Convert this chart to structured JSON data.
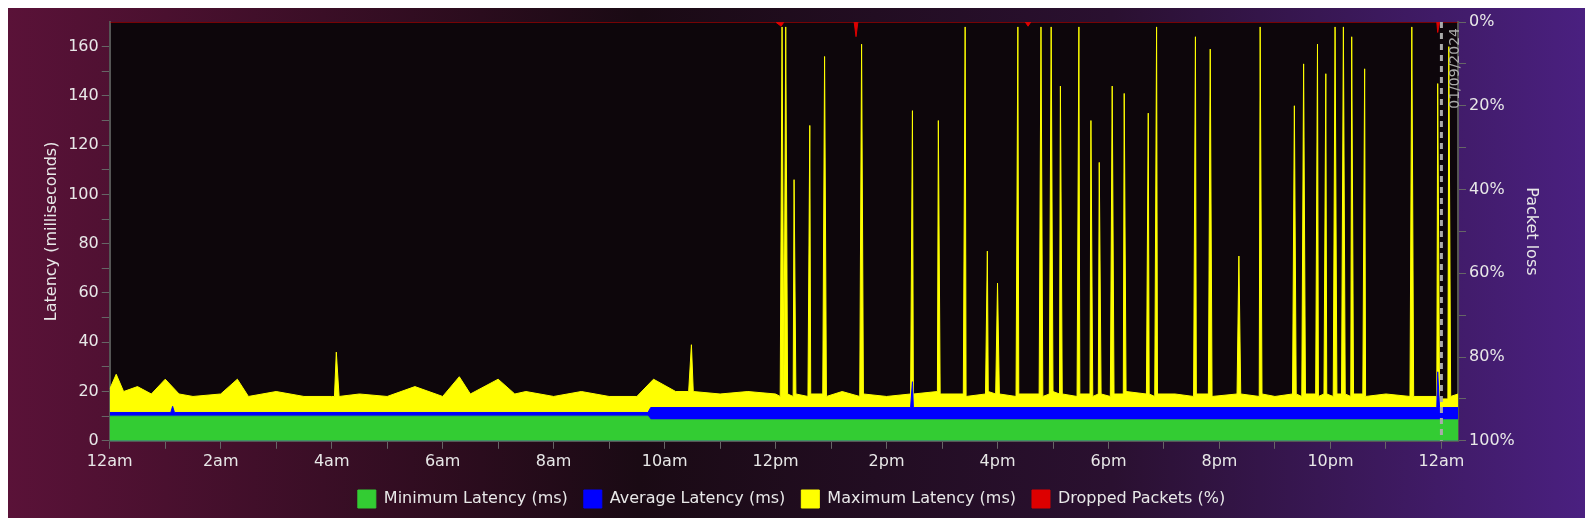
{
  "chart_data": {
    "type": "area",
    "ylabel": "Latency (milliseconds)",
    "y2label": "Packet loss",
    "xlim": [
      "2024-08-31T00:00",
      "2024-09-01T00:18"
    ],
    "ylim": [
      0,
      170
    ],
    "y2lim": [
      100,
      0
    ],
    "xticks": [
      {
        "value": "2024-08-31T00:00",
        "label": "12am"
      },
      {
        "value": "2024-08-31T01:00",
        "label": null
      },
      {
        "value": "2024-08-31T02:00",
        "label": "2am"
      },
      {
        "value": "2024-08-31T03:00",
        "label": null
      },
      {
        "value": "2024-08-31T04:00",
        "label": "4am"
      },
      {
        "value": "2024-08-31T05:00",
        "label": null
      },
      {
        "value": "2024-08-31T06:00",
        "label": "6am"
      },
      {
        "value": "2024-08-31T07:00",
        "label": null
      },
      {
        "value": "2024-08-31T08:00",
        "label": "8am"
      },
      {
        "value": "2024-08-31T09:00",
        "label": null
      },
      {
        "value": "2024-08-31T10:00",
        "label": "10am"
      },
      {
        "value": "2024-08-31T11:00",
        "label": null
      },
      {
        "value": "2024-08-31T12:00",
        "label": "12pm"
      },
      {
        "value": "2024-08-31T13:00",
        "label": null
      },
      {
        "value": "2024-08-31T14:00",
        "label": "2pm"
      },
      {
        "value": "2024-08-31T15:00",
        "label": null
      },
      {
        "value": "2024-08-31T16:00",
        "label": "4pm"
      },
      {
        "value": "2024-08-31T17:00",
        "label": null
      },
      {
        "value": "2024-08-31T18:00",
        "label": "6pm"
      },
      {
        "value": "2024-08-31T19:00",
        "label": null
      },
      {
        "value": "2024-08-31T20:00",
        "label": "8pm"
      },
      {
        "value": "2024-08-31T21:00",
        "label": null
      },
      {
        "value": "2024-08-31T22:00",
        "label": "10pm"
      },
      {
        "value": "2024-08-31T23:00",
        "label": null
      },
      {
        "value": "2024-09-01T00:00",
        "label": "12am"
      }
    ],
    "yticks": [
      0,
      {
        "value": 10,
        "label": null
      },
      20,
      {
        "value": 30,
        "label": null
      },
      40,
      {
        "value": 50,
        "label": null
      },
      60,
      {
        "value": 70,
        "label": null
      },
      80,
      {
        "value": 90,
        "label": null
      },
      100,
      {
        "value": 110,
        "label": null
      },
      120,
      {
        "value": 130,
        "label": null
      },
      140,
      {
        "value": 150,
        "label": null
      },
      160
    ],
    "y2ticks": [
      {
        "value": 0,
        "label": "0%"
      },
      {
        "value": 10,
        "label": null
      },
      {
        "value": 20,
        "label": "20%"
      },
      {
        "value": 30,
        "label": null
      },
      {
        "value": 40,
        "label": "40%"
      },
      {
        "value": 50,
        "label": null
      },
      {
        "value": 60,
        "label": "60%"
      },
      {
        "value": 70,
        "label": null
      },
      {
        "value": 80,
        "label": "80%"
      },
      {
        "value": 90,
        "label": null
      },
      {
        "value": 100,
        "label": "100%"
      }
    ],
    "grid": false,
    "legend": "bottom",
    "marker": "none",
    "ref_lines": [
      {
        "axis": "x",
        "value": "2024-09-01T00:00",
        "label": "01/09/2024",
        "color": "#aaaaaa",
        "line_style": "dashed"
      }
    ],
    "series": [
      {
        "name": "Minimum Latency (ms)",
        "color": "#33cc33",
        "x": [
          "2024-08-31T00:00",
          "2024-08-31T09:42",
          "2024-08-31T09:45",
          "2024-09-01T00:18"
        ],
        "values": [
          10,
          10,
          8.5,
          8.5
        ]
      },
      {
        "name": "Average Latency (ms)",
        "color": "#0000ff",
        "x": [
          "2024-08-31T00:00",
          "2024-08-31T01:06",
          "2024-08-31T01:08",
          "2024-08-31T01:10",
          "2024-08-31T09:42",
          "2024-08-31T09:45",
          "2024-08-31T14:26",
          "2024-08-31T14:28",
          "2024-08-31T14:29",
          "2024-08-31T23:55",
          "2024-08-31T23:56",
          "2024-08-31T23:58",
          "2024-09-01T00:18"
        ],
        "values": [
          11.5,
          11.5,
          14,
          11.5,
          11.5,
          13.5,
          13.5,
          24,
          13.5,
          13.5,
          28,
          13.5,
          13.5
        ]
      },
      {
        "name": "Maximum Latency (ms)",
        "color": "#ffff00",
        "x": [
          "2024-08-31T00:00",
          "2024-08-31T00:07",
          "2024-08-31T00:15",
          "2024-08-31T00:30",
          "2024-08-31T00:45",
          "2024-08-31T01:00",
          "2024-08-31T01:15",
          "2024-08-31T01:30",
          "2024-08-31T02:00",
          "2024-08-31T02:18",
          "2024-08-31T02:30",
          "2024-08-31T03:00",
          "2024-08-31T03:30",
          "2024-08-31T04:00",
          "2024-08-31T04:03",
          "2024-08-31T04:05",
          "2024-08-31T04:08",
          "2024-08-31T04:30",
          "2024-08-31T05:00",
          "2024-08-31T05:30",
          "2024-08-31T06:00",
          "2024-08-31T06:18",
          "2024-08-31T06:30",
          "2024-08-31T07:00",
          "2024-08-31T07:18",
          "2024-08-31T07:30",
          "2024-08-31T08:00",
          "2024-08-31T08:30",
          "2024-08-31T09:00",
          "2024-08-31T09:30",
          "2024-08-31T09:48",
          "2024-08-31T10:12",
          "2024-08-31T10:26",
          "2024-08-31T10:29",
          "2024-08-31T10:31",
          "2024-08-31T11:00",
          "2024-08-31T11:30",
          "2024-08-31T12:00",
          "2024-08-31T12:05",
          "2024-08-31T12:07",
          "2024-08-31T12:09",
          "2024-08-31T12:11",
          "2024-08-31T12:13",
          "2024-08-31T12:19",
          "2024-08-31T12:20",
          "2024-08-31T12:22",
          "2024-08-31T12:35",
          "2024-08-31T12:37",
          "2024-08-31T12:38",
          "2024-08-31T12:51",
          "2024-08-31T12:53",
          "2024-08-31T12:55",
          "2024-08-31T13:12",
          "2024-08-31T13:31",
          "2024-08-31T13:33",
          "2024-08-31T13:35",
          "2024-08-31T14:00",
          "2024-08-31T14:26",
          "2024-08-31T14:28",
          "2024-08-31T14:29",
          "2024-08-31T14:55",
          "2024-08-31T14:56",
          "2024-08-31T14:58",
          "2024-08-31T15:23",
          "2024-08-31T15:25",
          "2024-08-31T15:26",
          "2024-08-31T15:47",
          "2024-08-31T15:49",
          "2024-08-31T15:50",
          "2024-08-31T15:58",
          "2024-08-31T16:00",
          "2024-08-31T16:02",
          "2024-08-31T16:20",
          "2024-08-31T16:22",
          "2024-08-31T16:23",
          "2024-08-31T16:45",
          "2024-08-31T16:47",
          "2024-08-31T16:49",
          "2024-08-31T16:56",
          "2024-08-31T16:58",
          "2024-08-31T17:00",
          "2024-08-31T17:07",
          "2024-08-31T17:08",
          "2024-08-31T17:10",
          "2024-08-31T17:26",
          "2024-08-31T17:28",
          "2024-08-31T17:29",
          "2024-08-31T17:40",
          "2024-08-31T17:41",
          "2024-08-31T17:43",
          "2024-08-31T17:49",
          "2024-08-31T17:50",
          "2024-08-31T17:52",
          "2024-08-31T18:02",
          "2024-08-31T18:04",
          "2024-08-31T18:06",
          "2024-08-31T18:16",
          "2024-08-31T18:17",
          "2024-08-31T18:19",
          "2024-08-31T18:41",
          "2024-08-31T18:43",
          "2024-08-31T18:44",
          "2024-08-31T18:50",
          "2024-08-31T18:52",
          "2024-08-31T18:53",
          "2024-08-31T19:12",
          "2024-08-31T19:32",
          "2024-08-31T19:34",
          "2024-08-31T19:35",
          "2024-08-31T19:48",
          "2024-08-31T19:50",
          "2024-08-31T19:52",
          "2024-08-31T20:19",
          "2024-08-31T20:21",
          "2024-08-31T20:23",
          "2024-08-31T20:43",
          "2024-08-31T20:44",
          "2024-08-31T20:46",
          "2024-08-31T21:00",
          "2024-08-31T21:19",
          "2024-08-31T21:21",
          "2024-08-31T21:23",
          "2024-08-31T21:29",
          "2024-08-31T21:31",
          "2024-08-31T21:33",
          "2024-08-31T21:44",
          "2024-08-31T21:46",
          "2024-08-31T21:47",
          "2024-08-31T21:53",
          "2024-08-31T21:55",
          "2024-08-31T21:56",
          "2024-08-31T22:03",
          "2024-08-31T22:05",
          "2024-08-31T22:07",
          "2024-08-31T22:12",
          "2024-08-31T22:14",
          "2024-08-31T22:16",
          "2024-08-31T22:22",
          "2024-08-31T22:23",
          "2024-08-31T22:25",
          "2024-08-31T22:35",
          "2024-08-31T22:37",
          "2024-08-31T22:38",
          "2024-08-31T23:00",
          "2024-08-31T23:26",
          "2024-08-31T23:28",
          "2024-08-31T23:30",
          "2024-08-31T23:55",
          "2024-08-31T23:56",
          "2024-08-31T23:58",
          "2024-09-01T00:07",
          "2024-09-01T00:08",
          "2024-09-01T00:10",
          "2024-09-01T00:18"
        ],
        "values": [
          21,
          27,
          20,
          22,
          19,
          25,
          19,
          18,
          19,
          25,
          18,
          20,
          18,
          18,
          18,
          36,
          18,
          19,
          18,
          22,
          18,
          26,
          19,
          25,
          19,
          20,
          18,
          20,
          18,
          18,
          25,
          20,
          20,
          39,
          20,
          19,
          20,
          19,
          18,
          168,
          20,
          168,
          19,
          18,
          106,
          19,
          18,
          128,
          19,
          19,
          156,
          18,
          20,
          18,
          161,
          19,
          18,
          19,
          134,
          19,
          20,
          130,
          19,
          19,
          168,
          18,
          19,
          77,
          20,
          19,
          64,
          19,
          18,
          168,
          19,
          19,
          168,
          18,
          19,
          168,
          20,
          19,
          144,
          19,
          18,
          168,
          19,
          19,
          130,
          18,
          19,
          113,
          19,
          18,
          144,
          19,
          19,
          141,
          20,
          19,
          133,
          19,
          18,
          168,
          19,
          19,
          18,
          164,
          19,
          19,
          159,
          18,
          19,
          75,
          19,
          18,
          168,
          19,
          18,
          19,
          136,
          19,
          18,
          153,
          19,
          19,
          161,
          18,
          19,
          149,
          19,
          18,
          168,
          19,
          19,
          168,
          19,
          18,
          164,
          19,
          19,
          151,
          18,
          19,
          18,
          168,
          18,
          18,
          145,
          17,
          17,
          160,
          18,
          19
        ]
      },
      {
        "name": "Dropped Packets (%)",
        "color": "#dd0000",
        "axis": "y2",
        "x": [
          "2024-08-31T00:00",
          "2024-08-31T12:00",
          "2024-08-31T12:06",
          "2024-08-31T12:09",
          "2024-08-31T13:25",
          "2024-08-31T13:27",
          "2024-08-31T13:29",
          "2024-08-31T16:30",
          "2024-08-31T16:33",
          "2024-08-31T16:36",
          "2024-08-31T23:55",
          "2024-08-31T23:56",
          "2024-08-31T23:58",
          "2024-09-01T00:18"
        ],
        "values": [
          0,
          0,
          1,
          0,
          0,
          3.5,
          0,
          0,
          1,
          0,
          0,
          2.5,
          0,
          0
        ]
      }
    ]
  }
}
